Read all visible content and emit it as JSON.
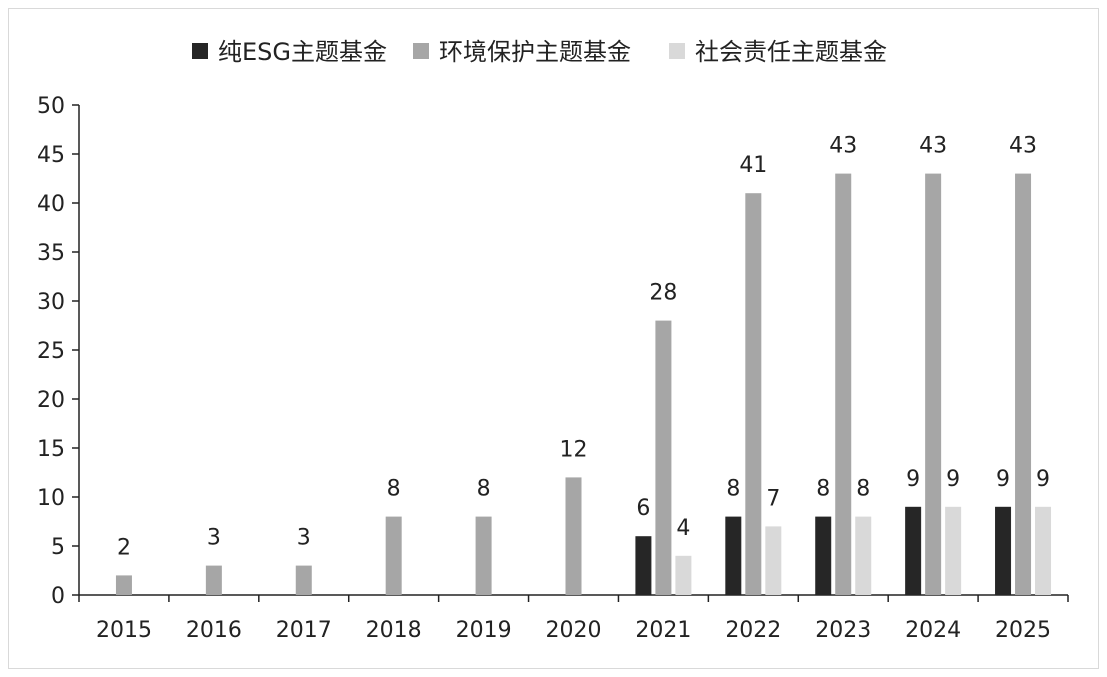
{
  "chart_data": {
    "type": "bar",
    "categories": [
      "2015",
      "2016",
      "2017",
      "2018",
      "2019",
      "2020",
      "2021",
      "2022",
      "2023",
      "2024",
      "2025"
    ],
    "series": [
      {
        "name": "纯ESG主题基金",
        "color": "#262626",
        "values": [
          null,
          null,
          null,
          null,
          null,
          null,
          6,
          8,
          8,
          9,
          9
        ]
      },
      {
        "name": "环境保护主题基金",
        "color": "#a6a6a6",
        "values": [
          2,
          3,
          3,
          8,
          8,
          12,
          28,
          41,
          43,
          43,
          43
        ]
      },
      {
        "name": "社会责任主题基金",
        "color": "#d9d9d9",
        "values": [
          null,
          null,
          null,
          null,
          null,
          null,
          4,
          7,
          8,
          9,
          9
        ]
      }
    ],
    "ylim": [
      0,
      50
    ],
    "yticks": [
      "0",
      "5",
      "10",
      "15",
      "20",
      "25",
      "30",
      "35",
      "40",
      "45",
      "50"
    ],
    "legend_position": "top",
    "grid": false
  }
}
